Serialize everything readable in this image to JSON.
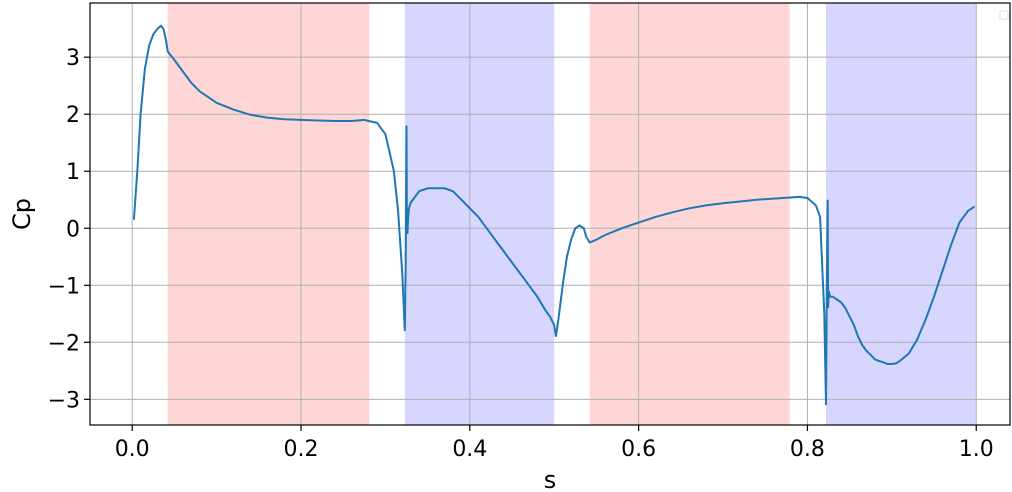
{
  "chart_data": {
    "type": "line",
    "xlabel": "s",
    "ylabel": "Cp",
    "xlim": [
      -0.05,
      1.04
    ],
    "ylim": [
      -3.45,
      3.95
    ],
    "grid": true,
    "x_ticks": [
      0.0,
      0.2,
      0.4,
      0.6,
      0.8,
      1.0
    ],
    "x_tick_labels": [
      "0.0",
      "0.2",
      "0.4",
      "0.6",
      "0.8",
      "1.0"
    ],
    "y_ticks": [
      3,
      2,
      1,
      0,
      -1,
      -2,
      -3
    ],
    "y_tick_labels": [
      "3",
      "2",
      "1",
      "0",
      "−1",
      "−2",
      "−3"
    ],
    "line_color": "#1f77b4",
    "shaded_regions": [
      {
        "x_start": 0.042,
        "x_end": 0.281,
        "color": "#ff0000",
        "alpha": 0.16
      },
      {
        "x_start": 0.323,
        "x_end": 0.5,
        "color": "#0000ff",
        "alpha": 0.16
      },
      {
        "x_start": 0.542,
        "x_end": 0.779,
        "color": "#ff0000",
        "alpha": 0.16
      },
      {
        "x_start": 0.822,
        "x_end": 1.0,
        "color": "#0000ff",
        "alpha": 0.16
      }
    ],
    "series": [
      {
        "x": [
          0.002,
          0.006,
          0.01,
          0.015,
          0.02,
          0.025,
          0.03,
          0.034,
          0.037,
          0.04,
          0.042,
          0.05,
          0.06,
          0.07,
          0.08,
          0.09,
          0.1,
          0.12,
          0.14,
          0.16,
          0.18,
          0.2,
          0.22,
          0.24,
          0.26,
          0.275,
          0.28,
          0.29,
          0.3,
          0.31,
          0.315,
          0.32,
          0.323,
          0.324,
          0.325,
          0.3255,
          0.326,
          0.327,
          0.328,
          0.33,
          0.335,
          0.34,
          0.35,
          0.36,
          0.37,
          0.38,
          0.39,
          0.4,
          0.41,
          0.42,
          0.43,
          0.44,
          0.45,
          0.46,
          0.47,
          0.48,
          0.49,
          0.495,
          0.5,
          0.502,
          0.505,
          0.51,
          0.515,
          0.52,
          0.525,
          0.53,
          0.535,
          0.538,
          0.542,
          0.55,
          0.56,
          0.58,
          0.6,
          0.62,
          0.64,
          0.66,
          0.68,
          0.7,
          0.72,
          0.74,
          0.76,
          0.78,
          0.79,
          0.8,
          0.81,
          0.815,
          0.82,
          0.822,
          0.823,
          0.824,
          0.8245,
          0.825,
          0.826,
          0.827,
          0.83,
          0.835,
          0.84,
          0.845,
          0.85,
          0.855,
          0.86,
          0.865,
          0.87,
          0.875,
          0.88,
          0.885,
          0.89,
          0.895,
          0.9,
          0.905,
          0.91,
          0.92,
          0.93,
          0.94,
          0.95,
          0.96,
          0.97,
          0.98,
          0.99,
          0.998
        ],
        "y": [
          0.15,
          1.0,
          2.0,
          2.8,
          3.2,
          3.4,
          3.5,
          3.55,
          3.5,
          3.3,
          3.1,
          2.95,
          2.75,
          2.55,
          2.4,
          2.3,
          2.2,
          2.08,
          1.99,
          1.94,
          1.91,
          1.9,
          1.89,
          1.88,
          1.88,
          1.9,
          1.88,
          1.85,
          1.65,
          1.0,
          0.3,
          -0.8,
          -1.8,
          -0.6,
          1.8,
          0.0,
          -0.1,
          0.2,
          0.35,
          0.45,
          0.55,
          0.65,
          0.7,
          0.7,
          0.7,
          0.65,
          0.5,
          0.35,
          0.2,
          0.0,
          -0.2,
          -0.4,
          -0.6,
          -0.8,
          -1.0,
          -1.2,
          -1.45,
          -1.55,
          -1.7,
          -1.9,
          -1.6,
          -1.0,
          -0.5,
          -0.2,
          0.0,
          0.05,
          0.0,
          -0.15,
          -0.25,
          -0.2,
          -0.12,
          0.0,
          0.1,
          0.2,
          0.28,
          0.35,
          0.4,
          0.44,
          0.47,
          0.5,
          0.52,
          0.54,
          0.55,
          0.53,
          0.4,
          0.2,
          -1.5,
          -3.1,
          -1.0,
          0.5,
          -1.4,
          -1.2,
          -1.15,
          -1.2,
          -1.2,
          -1.25,
          -1.3,
          -1.4,
          -1.55,
          -1.7,
          -1.9,
          -2.05,
          -2.15,
          -2.22,
          -2.3,
          -2.33,
          -2.35,
          -2.38,
          -2.38,
          -2.37,
          -2.32,
          -2.2,
          -1.95,
          -1.6,
          -1.2,
          -0.75,
          -0.3,
          0.1,
          0.3,
          0.38
        ]
      }
    ]
  }
}
